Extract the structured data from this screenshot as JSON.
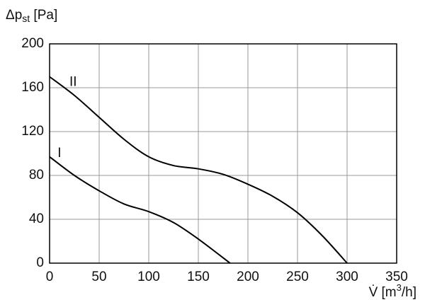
{
  "chart_data": {
    "type": "line",
    "ylabel": [
      "Δp",
      "st",
      " [Pa]"
    ],
    "xlabel": [
      "V̇ [m",
      "3",
      "/h]"
    ],
    "xlim": [
      0,
      350
    ],
    "xticks": [
      0,
      50,
      100,
      150,
      200,
      250,
      300,
      350
    ],
    "ylim": [
      0,
      200
    ],
    "yticks": [
      0,
      40,
      80,
      120,
      160,
      200
    ],
    "grid": true,
    "series": [
      {
        "name": "I",
        "color": "#000000",
        "x": [
          0,
          25,
          50,
          75,
          100,
          125,
          150,
          182
        ],
        "values": [
          97,
          80,
          66,
          54,
          47,
          37,
          22,
          0
        ],
        "label_at": [
          8,
          100
        ]
      },
      {
        "name": "II",
        "color": "#000000",
        "x": [
          0,
          25,
          50,
          75,
          100,
          125,
          150,
          175,
          200,
          225,
          250,
          275,
          300
        ],
        "values": [
          170,
          153,
          133,
          113,
          97,
          89,
          86,
          81,
          72,
          61,
          46,
          25,
          0
        ],
        "label_at": [
          20,
          165
        ]
      }
    ]
  }
}
